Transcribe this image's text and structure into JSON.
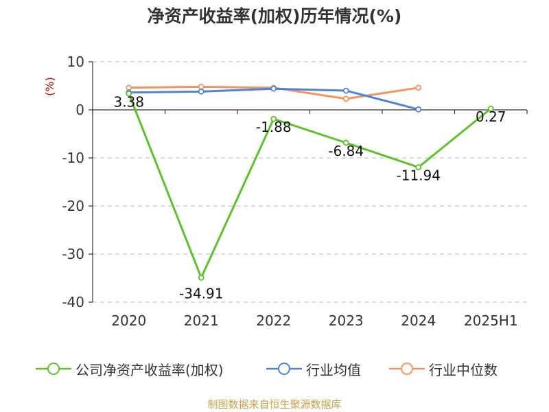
{
  "title": "净资产收益率(加权)历年情况(%)",
  "source_note": "制图数据来自恒生聚源数据库",
  "chart_data": {
    "type": "line",
    "title": "净资产收益率(加权)历年情况(%)",
    "ylabel": "(%)",
    "xlabel": "",
    "categories": [
      "2020",
      "2021",
      "2022",
      "2023",
      "2024",
      "2025H1"
    ],
    "ylim": [
      -40,
      10
    ],
    "yticks": [
      10,
      0,
      -10,
      -20,
      -30,
      -40
    ],
    "grid": true,
    "legend_position": "bottom",
    "series": [
      {
        "name": "公司净资产收益率(加权)",
        "color": "#5cc12b",
        "values": [
          3.38,
          -34.91,
          -1.88,
          -6.84,
          -11.94,
          0.27
        ],
        "labels": [
          "3.38",
          "-34.91",
          "-1.88",
          "-6.84",
          "-11.94",
          "0.27"
        ]
      },
      {
        "name": "行业均值",
        "color": "#5082d8",
        "values": [
          3.6,
          3.8,
          4.4,
          4.0,
          0.1,
          null
        ]
      },
      {
        "name": "行业中位数",
        "color": "#f39360",
        "values": [
          4.6,
          4.8,
          4.6,
          2.3,
          4.6,
          null
        ]
      }
    ]
  }
}
